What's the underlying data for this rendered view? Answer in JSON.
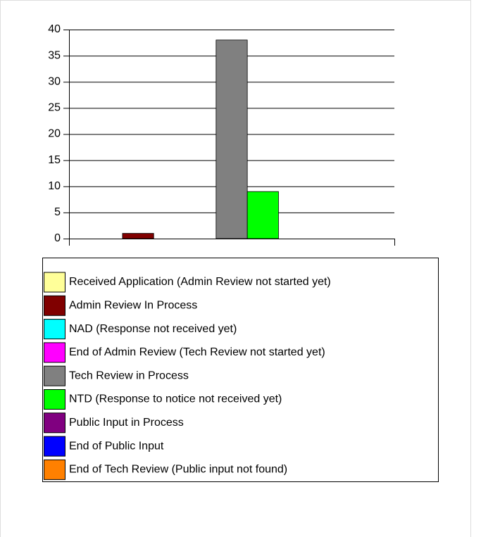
{
  "chart_data": {
    "type": "bar",
    "categories": [
      null
    ],
    "series": [
      {
        "name": "Received Application (Admin Review not started yet)",
        "color": "#ffff99",
        "values": [
          0
        ]
      },
      {
        "name": "Admin Review In Process",
        "color": "#800000",
        "values": [
          1
        ]
      },
      {
        "name": "NAD (Response not received yet)",
        "color": "#00ffff",
        "values": [
          0
        ]
      },
      {
        "name": "End of Admin Review (Tech Review not started yet)",
        "color": "#ff00ff",
        "values": [
          0
        ]
      },
      {
        "name": "Tech Review in Process",
        "color": "#808080",
        "values": [
          38
        ]
      },
      {
        "name": "NTD (Response to notice not received yet)",
        "color": "#00ff00",
        "values": [
          9
        ]
      },
      {
        "name": "Public Input in Process",
        "color": "#800080",
        "values": [
          0
        ]
      },
      {
        "name": "End of Public Input",
        "color": "#0000ff",
        "values": [
          0
        ]
      },
      {
        "name": "End of Tech Review (Public input not found)",
        "color": "#ff8000",
        "values": [
          0
        ]
      }
    ],
    "ylim": [
      0,
      40
    ],
    "yticks": [
      0,
      5,
      10,
      15,
      20,
      25,
      30,
      35,
      40
    ],
    "grid": true,
    "legend": "bottom"
  }
}
